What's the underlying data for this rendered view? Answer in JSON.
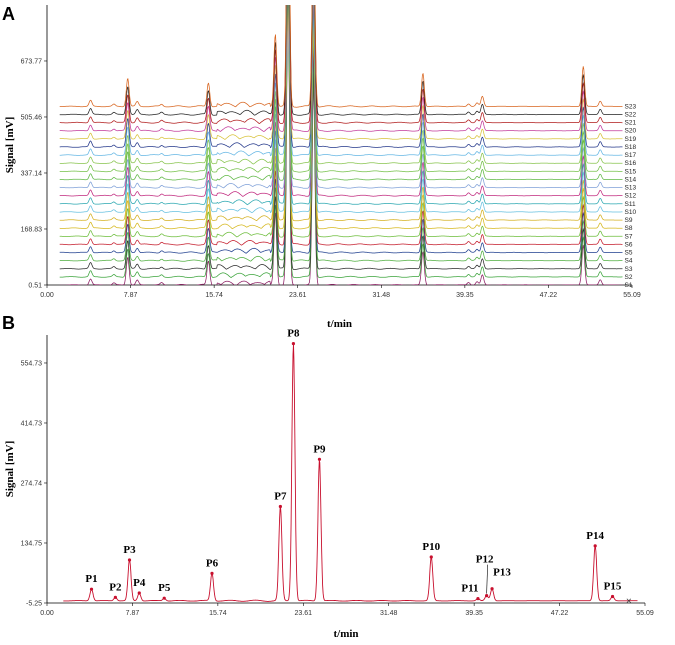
{
  "chart_data": [
    {
      "panel": "A",
      "type": "line",
      "xlabel": "t/min",
      "ylabel": "Signal [mV]",
      "x_ticks": [
        "0.00",
        "7.87",
        "15.74",
        "23.61",
        "31.48",
        "39.35",
        "47.22",
        "55.09"
      ],
      "y_ticks": [
        "0.51",
        "168.83",
        "337.14",
        "505.46",
        "673.77"
      ],
      "xlim": [
        0,
        55.09
      ],
      "ylim": [
        0.51,
        842
      ],
      "grid": false,
      "legend": "none",
      "baseline_offset_step_mV": 24.4,
      "series": [
        {
          "name": "S1",
          "color": "#8b1c62"
        },
        {
          "name": "S2",
          "color": "#3aa33a"
        },
        {
          "name": "S3",
          "color": "#2a2a2a"
        },
        {
          "name": "S4",
          "color": "#4fae3f"
        },
        {
          "name": "S5",
          "color": "#1f3f8f"
        },
        {
          "name": "S6",
          "color": "#c41a2a"
        },
        {
          "name": "S7",
          "color": "#6cbd3a"
        },
        {
          "name": "S8",
          "color": "#d6b81f"
        },
        {
          "name": "S9",
          "color": "#d4b020"
        },
        {
          "name": "S10",
          "color": "#66c0e0"
        },
        {
          "name": "S11",
          "color": "#2aa7b0"
        },
        {
          "name": "S12",
          "color": "#c0287e"
        },
        {
          "name": "S13",
          "color": "#7fa0d8"
        },
        {
          "name": "S14",
          "color": "#5fb844"
        },
        {
          "name": "S15",
          "color": "#74c048"
        },
        {
          "name": "S16",
          "color": "#88c44e"
        },
        {
          "name": "S17",
          "color": "#64b6e4"
        },
        {
          "name": "S18",
          "color": "#23378a"
        },
        {
          "name": "S19",
          "color": "#d8c23a"
        },
        {
          "name": "S20",
          "color": "#c23a9a"
        },
        {
          "name": "S21",
          "color": "#b01a1a"
        },
        {
          "name": "S22",
          "color": "#222222"
        },
        {
          "name": "S23",
          "color": "#d8641e"
        }
      ],
      "peaks": [
        {
          "t": 4.1,
          "h": 18
        },
        {
          "t": 6.3,
          "h": 6
        },
        {
          "t": 7.6,
          "h": 85
        },
        {
          "t": 8.5,
          "h": 14
        },
        {
          "t": 10.8,
          "h": 6
        },
        {
          "t": 15.2,
          "h": 72
        },
        {
          "t": 21.5,
          "h": 220
        },
        {
          "t": 22.7,
          "h": 900
        },
        {
          "t": 25.1,
          "h": 600
        },
        {
          "t": 35.4,
          "h": 100
        },
        {
          "t": 39.7,
          "h": 8
        },
        {
          "t": 40.5,
          "h": 10
        },
        {
          "t": 41.0,
          "h": 30
        },
        {
          "t": 50.5,
          "h": 120
        },
        {
          "t": 52.1,
          "h": 16
        }
      ]
    },
    {
      "panel": "B",
      "type": "line",
      "xlabel": "t/min",
      "ylabel": "Signal [mV]",
      "x_ticks": [
        "0.00",
        "7.87",
        "15.74",
        "23.61",
        "31.48",
        "39.35",
        "47.22",
        "55.09"
      ],
      "y_ticks": [
        "-5.25",
        "134.75",
        "274.74",
        "414.73",
        "554.73"
      ],
      "xlim": [
        0,
        55.09
      ],
      "ylim": [
        -5.25,
        620
      ],
      "grid": false,
      "legend": "none",
      "color": "#c8102e",
      "peaks": [
        {
          "label": "P1",
          "t": 4.1,
          "value": 27
        },
        {
          "label": "P2",
          "t": 6.3,
          "value": 8
        },
        {
          "label": "P3",
          "t": 7.6,
          "value": 95
        },
        {
          "label": "P4",
          "t": 8.5,
          "value": 18
        },
        {
          "label": "P5",
          "t": 10.8,
          "value": 6
        },
        {
          "label": "P6",
          "t": 15.2,
          "value": 64
        },
        {
          "label": "P7",
          "t": 21.5,
          "value": 220
        },
        {
          "label": "P8",
          "t": 22.7,
          "value": 600
        },
        {
          "label": "P9",
          "t": 25.1,
          "value": 330
        },
        {
          "label": "P10",
          "t": 35.4,
          "value": 102
        },
        {
          "label": "P11",
          "t": 39.7,
          "value": 5
        },
        {
          "label": "P12",
          "t": 40.5,
          "value": 12
        },
        {
          "label": "P13",
          "t": 41.0,
          "value": 28
        },
        {
          "label": "P14",
          "t": 50.5,
          "value": 128
        },
        {
          "label": "P15",
          "t": 52.1,
          "value": 10
        }
      ]
    }
  ],
  "panel_a": {
    "letter": "A"
  },
  "panel_b": {
    "letter": "B"
  }
}
